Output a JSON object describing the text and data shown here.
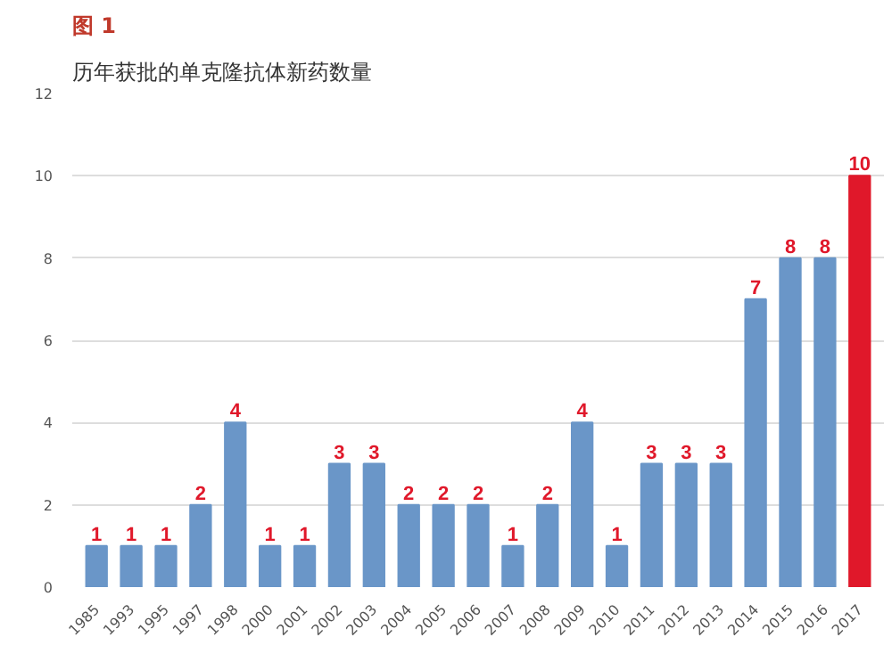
{
  "chart_data": {
    "type": "bar",
    "title": "历年获批的单克隆抗体新药数量",
    "annotations": [
      "图 1"
    ],
    "categories": [
      "1985",
      "1993",
      "1995",
      "1997",
      "1998",
      "2000",
      "2001",
      "2002",
      "2003",
      "2004",
      "2005",
      "2006",
      "2007",
      "2008",
      "2009",
      "2010",
      "2011",
      "2012",
      "2013",
      "2014",
      "2015",
      "2016",
      "2017"
    ],
    "values": [
      1,
      1,
      1,
      2,
      4,
      1,
      1,
      3,
      3,
      2,
      2,
      2,
      1,
      2,
      4,
      1,
      3,
      3,
      3,
      7,
      8,
      8,
      10
    ],
    "colors": [
      "#6a96c8",
      "#6a96c8",
      "#6a96c8",
      "#6a96c8",
      "#6a96c8",
      "#6a96c8",
      "#6a96c8",
      "#6a96c8",
      "#6a96c8",
      "#6a96c8",
      "#6a96c8",
      "#6a96c8",
      "#6a96c8",
      "#6a96c8",
      "#6a96c8",
      "#6a96c8",
      "#6a96c8",
      "#6a96c8",
      "#6a96c8",
      "#6a96c8",
      "#6a96c8",
      "#6a96c8",
      "#e0182a"
    ],
    "ylim": [
      0,
      12
    ],
    "yticks": [
      0,
      2,
      4,
      6,
      8,
      10,
      12
    ],
    "grid": "y",
    "data_labels": true
  }
}
